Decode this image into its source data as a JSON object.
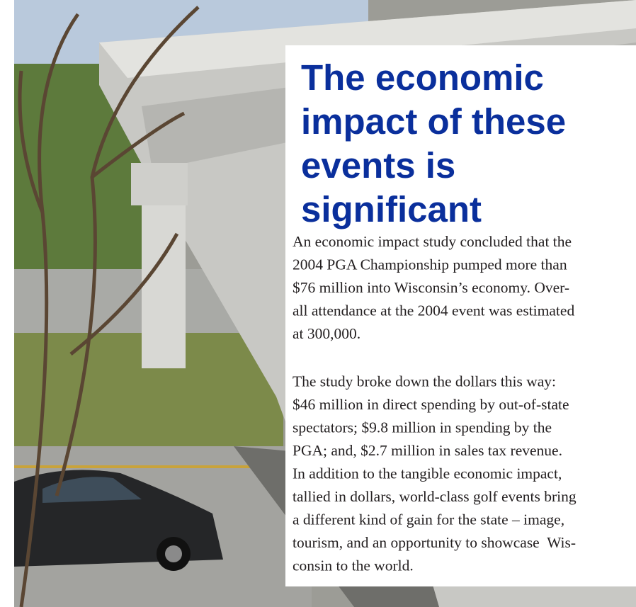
{
  "heading": {
    "lines": [
      "The economic",
      "impact of these",
      "events is",
      "significant"
    ]
  },
  "paragraphs": [
    {
      "lines": [
        "An economic impact study concluded that the",
        "2004 PGA Championship pumped more than",
        "$76 million into Wisconsin’s economy. Over-",
        "all attendance at the 2004 event was estimated",
        "at 300,000."
      ]
    },
    {
      "lines": [
        "The study broke down the dollars this way:",
        "$46 million in direct spending by out-of-state",
        "spectators; $9.8 million in spending by the",
        "PGA; and, $2.7 million in sales tax revenue.",
        "In addition to the tangible economic impact,",
        "tallied in dollars, world-class golf events bring",
        "a different kind of gain for the state – image,",
        "tourism, and an opportunity to showcase  Wis-",
        "consin to the world."
      ]
    }
  ]
}
